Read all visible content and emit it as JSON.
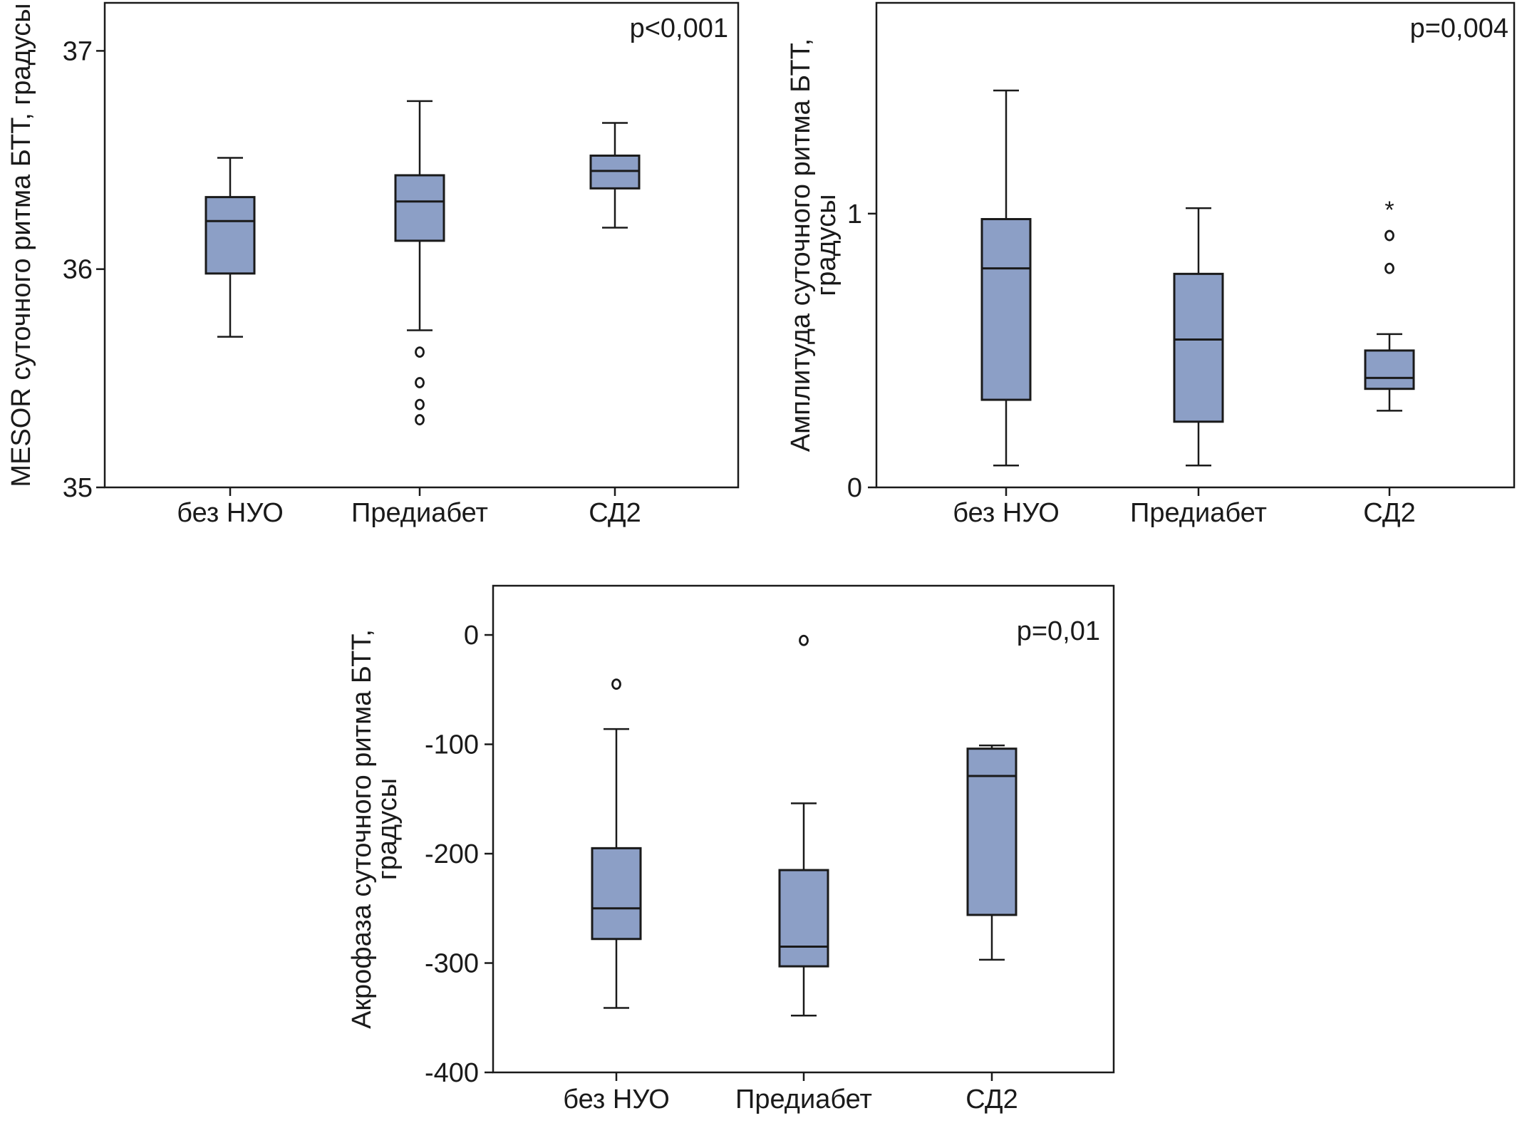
{
  "style": {
    "box_fill": "#8c9fc6",
    "line_color": "#1a1a1a"
  },
  "chart_data": [
    {
      "type": "box",
      "id": "mesor",
      "title": "",
      "ylabel_lines": [
        "MESOR суточного ритма БТТ, градусы"
      ],
      "xlabel": "",
      "annotation": "p<0,001",
      "ylim": [
        35,
        37.22
      ],
      "yticks": [
        35,
        36,
        37
      ],
      "ytick_labels": [
        "35",
        "36",
        "37"
      ],
      "grid": false,
      "categories": [
        "без НУО",
        "Предиабет",
        "СД2"
      ],
      "boxes": [
        {
          "category": "без НУО",
          "whisker_low": 35.69,
          "q1": 35.98,
          "median": 36.22,
          "q3": 36.33,
          "whisker_high": 36.51,
          "outliers": [],
          "extremes": []
        },
        {
          "category": "Предиабет",
          "whisker_low": 35.72,
          "q1": 36.13,
          "median": 36.31,
          "q3": 36.43,
          "whisker_high": 36.77,
          "outliers": [
            35.62,
            35.48,
            35.38,
            35.31
          ],
          "extremes": []
        },
        {
          "category": "СД2",
          "whisker_low": 36.19,
          "q1": 36.37,
          "median": 36.45,
          "q3": 36.52,
          "whisker_high": 36.67,
          "outliers": [],
          "extremes": []
        }
      ]
    },
    {
      "type": "box",
      "id": "amplitude",
      "title": "",
      "ylabel_lines": [
        "Амплитуда суточного ритма БТТ,",
        "градусы"
      ],
      "xlabel": "",
      "annotation": "p=0,004",
      "ylim": [
        0,
        1.77
      ],
      "yticks": [
        0,
        1
      ],
      "ytick_labels": [
        "0",
        "1"
      ],
      "grid": false,
      "categories": [
        "без НУО",
        "Предиабет",
        "СД2"
      ],
      "boxes": [
        {
          "category": "без НУО",
          "whisker_low": 0.08,
          "q1": 0.32,
          "median": 0.8,
          "q3": 0.98,
          "whisker_high": 1.45,
          "outliers": [],
          "extremes": []
        },
        {
          "category": "Предиабет",
          "whisker_low": 0.08,
          "q1": 0.24,
          "median": 0.54,
          "q3": 0.78,
          "whisker_high": 1.02,
          "outliers": [],
          "extremes": []
        },
        {
          "category": "СД2",
          "whisker_low": 0.28,
          "q1": 0.36,
          "median": 0.4,
          "q3": 0.5,
          "whisker_high": 0.56,
          "outliers": [
            0.8,
            0.92
          ],
          "extremes": [
            1.02
          ]
        }
      ]
    },
    {
      "type": "box",
      "id": "acrophase",
      "title": "",
      "ylabel_lines": [
        "Акрофаза суточного ритма БТТ,",
        "градусы"
      ],
      "xlabel": "",
      "annotation": "p=0,01",
      "ylim": [
        -400,
        45
      ],
      "yticks": [
        -400,
        -300,
        -200,
        -100,
        0
      ],
      "ytick_labels": [
        "-400",
        "-300",
        "-200",
        "-100",
        "0"
      ],
      "grid": false,
      "categories": [
        "без НУО",
        "Предиабет",
        "СД2"
      ],
      "boxes": [
        {
          "category": "без НУО",
          "whisker_low": -341,
          "q1": -278,
          "median": -250,
          "q3": -195,
          "whisker_high": -86,
          "outliers": [
            -45
          ],
          "extremes": []
        },
        {
          "category": "Предиабет",
          "whisker_low": -348,
          "q1": -303,
          "median": -285,
          "q3": -215,
          "whisker_high": -154,
          "outliers": [
            -5
          ],
          "extremes": []
        },
        {
          "category": "СД2",
          "whisker_low": -297,
          "q1": -256,
          "median": -129,
          "q3": -104,
          "whisker_high": -101,
          "outliers": [],
          "extremes": []
        }
      ]
    }
  ]
}
